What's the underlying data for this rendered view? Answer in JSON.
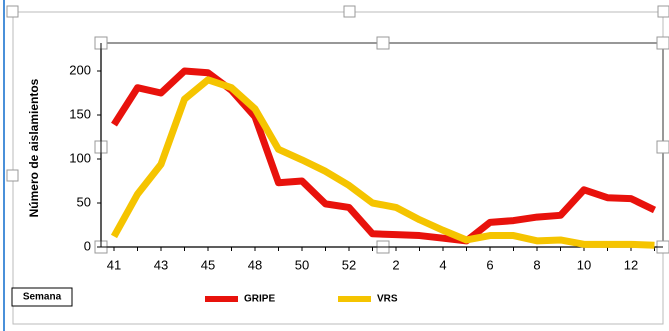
{
  "chart_data": {
    "type": "line",
    "y_label": "Número de aislamientos",
    "x_label": "Semana",
    "categories": [
      "41",
      null,
      "43",
      null,
      "45",
      null,
      "48",
      null,
      "50",
      null,
      "52",
      null,
      "2",
      null,
      "4",
      null,
      "6",
      null,
      "8",
      null,
      "10",
      null,
      "12",
      null
    ],
    "series": [
      {
        "name": "GRIPE",
        "color": "#e8120c",
        "values": [
          139,
          181,
          175,
          200,
          198,
          178,
          148,
          73,
          75,
          49,
          45,
          15,
          14,
          13,
          10,
          7,
          28,
          30,
          34,
          36,
          65,
          56,
          55,
          42
        ]
      },
      {
        "name": "VRS",
        "color": "#f5c400",
        "values": [
          12,
          60,
          94,
          168,
          190,
          181,
          157,
          111,
          99,
          86,
          70,
          50,
          45,
          31,
          19,
          8,
          13,
          13,
          7,
          8,
          3,
          3,
          3,
          2
        ]
      }
    ],
    "ylim": [
      0,
      200
    ],
    "yticks": [
      0,
      50,
      100,
      150,
      200
    ],
    "grid": false,
    "legend": "bottom"
  }
}
